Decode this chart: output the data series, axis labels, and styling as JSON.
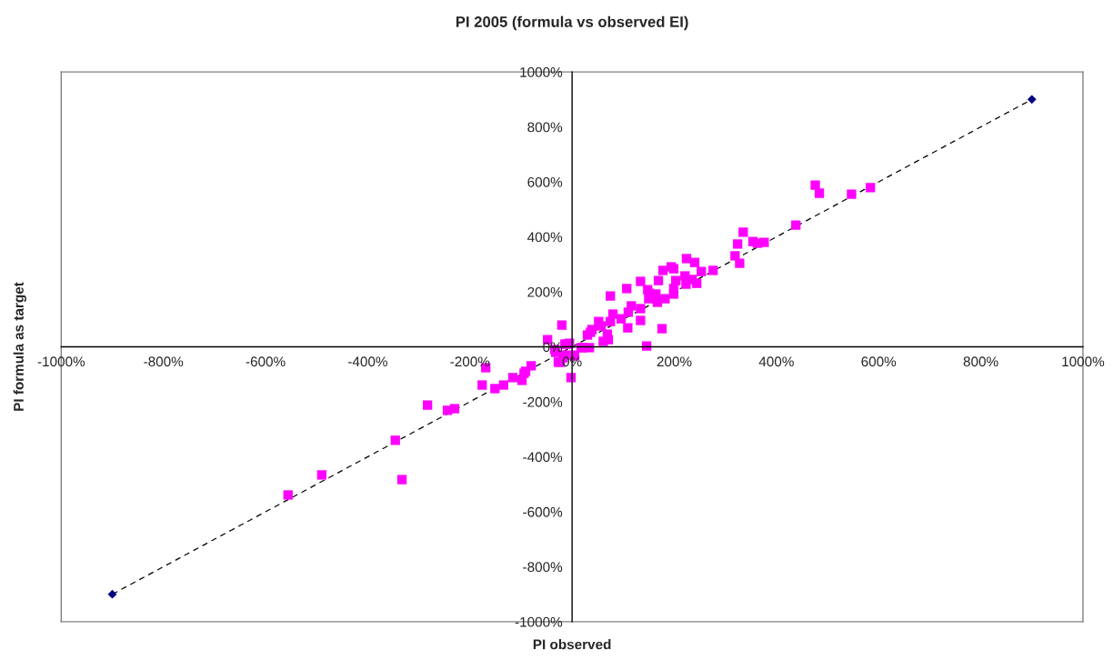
{
  "chart_data": {
    "type": "scatter",
    "title": "PI 2005 (formula vs observed EI)",
    "xlabel": "PI observed",
    "ylabel": "PI formula as target",
    "xlim": [
      -1000,
      1000
    ],
    "ylim": [
      -1000,
      1000
    ],
    "xticks": [
      {
        "value": -1000,
        "label": "-1000%"
      },
      {
        "value": -800,
        "label": "-800%"
      },
      {
        "value": -600,
        "label": "-600%"
      },
      {
        "value": -400,
        "label": "-400%"
      },
      {
        "value": -200,
        "label": "-200%"
      },
      {
        "value": 0,
        "label": "0%"
      },
      {
        "value": 200,
        "label": "200%"
      },
      {
        "value": 400,
        "label": "400%"
      },
      {
        "value": 600,
        "label": "600%"
      },
      {
        "value": 800,
        "label": "800%"
      },
      {
        "value": 1000,
        "label": "1000%"
      }
    ],
    "yticks": [
      {
        "value": -1000,
        "label": "-1000%"
      },
      {
        "value": -800,
        "label": "-800%"
      },
      {
        "value": -600,
        "label": "-600%"
      },
      {
        "value": -400,
        "label": "-400%"
      },
      {
        "value": -200,
        "label": "-200%"
      },
      {
        "value": 0,
        "label": "0%"
      },
      {
        "value": 200,
        "label": "200%"
      },
      {
        "value": 400,
        "label": "400%"
      },
      {
        "value": 600,
        "label": "600%"
      },
      {
        "value": 800,
        "label": "800%"
      },
      {
        "value": 1000,
        "label": "1000%"
      }
    ],
    "grid": false,
    "legend": false,
    "series": [
      {
        "marker": "square",
        "color": "#ff00ff",
        "x": [
          476,
          484,
          547,
          584,
          438,
          335,
          324,
          354,
          363,
          376,
          319,
          328,
          276,
          253,
          244,
          235,
          224,
          240,
          221,
          223,
          203,
          199,
          199,
          194,
          199,
          178,
          182,
          169,
          164,
          167,
          151,
          148,
          150,
          134,
          134,
          134,
          116,
          110,
          107,
          109,
          176,
          146,
          96,
          80,
          75,
          75,
          69,
          71,
          61,
          57,
          52,
          39,
          30,
          36,
          21,
          34,
          5,
          -9,
          -20,
          -48,
          -32,
          -23,
          -2,
          -94,
          -80,
          -34,
          -14,
          -5,
          18,
          4,
          -14,
          -27,
          -18,
          -91,
          -98,
          -116,
          -134,
          -151,
          -176,
          -169,
          -230,
          -244,
          -283,
          -346,
          -333,
          -490,
          -556
        ],
        "values": [
          588,
          559,
          555,
          579,
          443,
          417,
          374,
          383,
          377,
          380,
          331,
          304,
          278,
          274,
          231,
          245,
          321,
          307,
          258,
          228,
          241,
          212,
          192,
          291,
          284,
          278,
          175,
          241,
          192,
          162,
          195,
          208,
          175,
          238,
          139,
          96,
          149,
          126,
          212,
          69,
          66,
          3,
          102,
          119,
          185,
          92,
          46,
          26,
          20,
          76,
          92,
          63,
          43,
          53,
          -3,
          -3,
          -33,
          10,
          79,
          26,
          -20,
          -56,
          -112,
          -96,
          -69,
          -10,
          10,
          13,
          -3,
          -30,
          -30,
          -56,
          -40,
          -89,
          -122,
          -112,
          -139,
          -152,
          -139,
          -76,
          -225,
          -231,
          -212,
          -340,
          -483,
          -466,
          -539
        ]
      },
      {
        "type": "line",
        "line_style": "dashed",
        "marker": "none",
        "color": "#000000",
        "x": [
          -900,
          900
        ],
        "values": [
          -900,
          900
        ]
      },
      {
        "type": "scatter",
        "marker": "diamond",
        "color": "#000080",
        "x": [
          -900,
          900
        ],
        "values": [
          -900,
          900
        ]
      }
    ]
  }
}
